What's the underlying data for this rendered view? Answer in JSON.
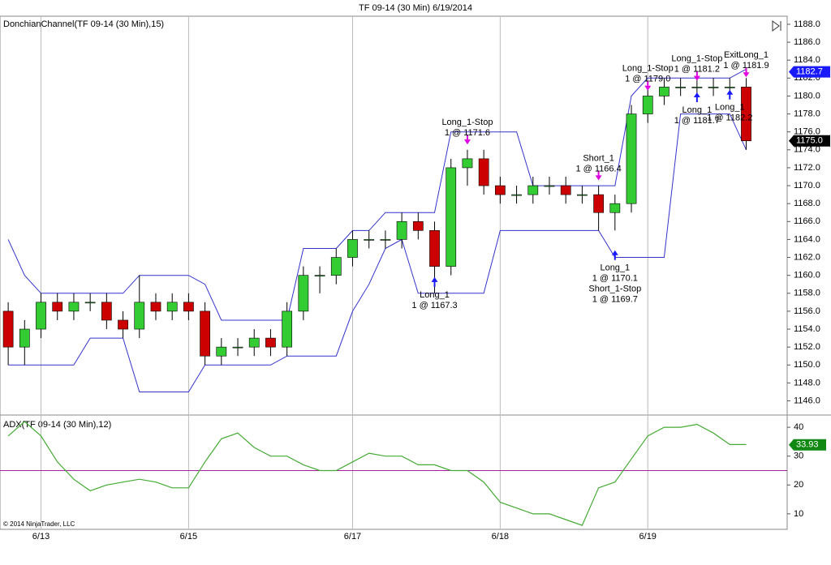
{
  "title": "TF 09-14 (30 Min)  6/19/2014",
  "copyright": "© 2014 NinjaTrader, LLC",
  "chart_data": [
    {
      "type": "candlestick",
      "title": "DonchianChannel(TF 09-14 (30 Min),15)",
      "categories": [
        null,
        null,
        "6/13",
        null,
        null,
        null,
        null,
        null,
        null,
        null,
        null,
        "6/15",
        null,
        null,
        null,
        null,
        null,
        null,
        null,
        null,
        null,
        "6/17",
        null,
        null,
        null,
        null,
        null,
        null,
        null,
        null,
        "6/18",
        null,
        null,
        null,
        null,
        null,
        null,
        null,
        null,
        "6/19",
        null,
        null,
        null,
        null,
        null,
        null,
        null,
        null
      ],
      "open": [
        1156,
        1152,
        1154,
        1157,
        1156,
        1157,
        1157,
        1155,
        1154,
        1157,
        1156,
        1157,
        1156,
        1151,
        1152,
        1152,
        1153,
        1152,
        1156,
        1160,
        1160,
        1162,
        1164,
        1164,
        1164,
        1166,
        1165,
        1161,
        1172,
        1173,
        1170,
        1169,
        1169,
        1170,
        1170,
        1169,
        1169,
        1167,
        1168,
        1178,
        1180,
        1181,
        1181,
        1181,
        1181,
        1181,
        null,
        null
      ],
      "high": [
        1157,
        1155,
        1158,
        1158,
        1158,
        1158,
        1158,
        1156,
        1160,
        1158,
        1158,
        1158,
        1157,
        1153,
        1153,
        1154,
        1154,
        1157,
        1161,
        1161,
        1163,
        1165,
        1165,
        1165,
        1167,
        1167,
        1166,
        1173,
        1174,
        1174,
        1171,
        1170,
        1171,
        1171,
        1171,
        1170,
        1170,
        1169,
        1179,
        1181,
        1182,
        1182,
        1182,
        1182,
        1182,
        1182,
        null,
        null
      ],
      "low": [
        1150,
        1150,
        1153,
        1155,
        1155,
        1156,
        1154,
        1153,
        1153,
        1155,
        1155,
        1155,
        1150,
        1150,
        1151,
        1151,
        1151,
        1151,
        1155,
        1158,
        1159,
        1161,
        1163,
        1163,
        1163,
        1164,
        1158,
        1160,
        1170,
        1169,
        1168,
        1168,
        1168,
        1169,
        1168,
        1168,
        1165,
        1165,
        1167,
        1177,
        1179,
        1180,
        1180,
        1180,
        1180,
        1174,
        null,
        null
      ],
      "close": [
        1152,
        1154,
        1157,
        1156,
        1157,
        1157,
        1155,
        1154,
        1157,
        1156,
        1157,
        1156,
        1151,
        1152,
        1152,
        1153,
        1152,
        1156,
        1160,
        1160,
        1162,
        1164,
        1164,
        1164,
        1166,
        1165,
        1161,
        1172,
        1173,
        1170,
        1169,
        1169,
        1170,
        1170,
        1169,
        1169,
        1167,
        1168,
        1178,
        1180,
        1181,
        1181,
        1181,
        1181,
        1181,
        1175,
        null,
        null
      ],
      "up_color": "#33cc33",
      "down_color": "#cc0000",
      "channel": [
        {
          "color": "#3333cc",
          "values": [
            1164,
            1160,
            1158,
            1158,
            1158,
            1158,
            1158,
            1158,
            1160,
            1160,
            1160,
            1160,
            1159,
            1155,
            1155,
            1155,
            1155,
            1155,
            1163,
            1163,
            1163,
            1165,
            1165,
            1167,
            1167,
            1167,
            1167,
            1176,
            1176,
            1176,
            1176,
            1176,
            1170,
            1170,
            1170,
            1170,
            1170,
            1170,
            1180,
            1182,
            1182,
            1182,
            1182,
            1182,
            1182,
            1183,
            null,
            null
          ]
        },
        {
          "color": "#3333cc",
          "values": [
            1150,
            1150,
            1150,
            1150,
            1150,
            1153,
            1153,
            1153,
            1147,
            1147,
            1147,
            1147,
            1150,
            1150,
            1150,
            1150,
            1150,
            1151,
            1151,
            1151,
            1151,
            1156,
            1159,
            1163,
            1164,
            1158,
            1158,
            1158,
            1158,
            1158,
            1165,
            1165,
            1165,
            1165,
            1165,
            1165,
            1165,
            1162,
            1162,
            1162,
            1162,
            1178,
            1178,
            1178,
            1178,
            1174,
            null,
            null
          ]
        }
      ],
      "ylim": [
        1144.6,
        1188.9
      ],
      "yticks": [
        {
          "value": 1146,
          "label": "1146.0"
        },
        {
          "value": 1148,
          "label": "1148.0"
        },
        {
          "value": 1150,
          "label": "1150.0"
        },
        {
          "value": 1152,
          "label": "1152.0"
        },
        {
          "value": 1154,
          "label": "1154.0"
        },
        {
          "value": 1156,
          "label": "1156.0"
        },
        {
          "value": 1158,
          "label": "1158.0"
        },
        {
          "value": 1160,
          "label": "1160.0"
        },
        {
          "value": 1162,
          "label": "1162.0"
        },
        {
          "value": 1164,
          "label": "1164.0"
        },
        {
          "value": 1166,
          "label": "1166.0"
        },
        {
          "value": 1168,
          "label": "1168.0"
        },
        {
          "value": 1170,
          "label": "1170.0"
        },
        {
          "value": 1172,
          "label": "1172.0"
        },
        {
          "value": 1174,
          "label": "1174.0"
        },
        {
          "value": 1176,
          "label": "1176.0"
        },
        {
          "value": 1178,
          "label": "1178.0"
        },
        {
          "value": 1180,
          "label": "1180.0"
        },
        {
          "value": 1182,
          "label": "1182.0"
        },
        {
          "value": 1184,
          "label": "1184.0"
        },
        {
          "value": 1186,
          "label": "1186.0"
        },
        {
          "value": 1188,
          "label": "1188.0"
        }
      ],
      "price_tags": [
        {
          "value": 1182.7,
          "label": "1182.7",
          "color": "#1a1aff"
        },
        {
          "value": 1175.0,
          "label": "1175.0",
          "color": "#000000"
        }
      ],
      "annotations": [
        {
          "label": [
            "Long_1",
            "1 @ 1167.3"
          ],
          "at": 26,
          "price": 1159.8,
          "side": "below"
        },
        {
          "label": [
            "Long_1-Stop",
            "1 @ 1171.6"
          ],
          "at": 28,
          "price": 1174.6,
          "side": "above"
        },
        {
          "label": [
            "Short_1",
            "1 @ 1166.4"
          ],
          "at": 36,
          "price": 1170.6,
          "side": "above"
        },
        {
          "label": [
            "Long_1",
            "1 @ 1170.1",
            "Short_1-Stop",
            "1 @ 1169.7"
          ],
          "at": 37,
          "price": 1162.8,
          "side": "below"
        },
        {
          "label": [
            "Long_1-Stop",
            "1 @ 1179.0"
          ],
          "at": 39,
          "price": 1180.6,
          "side": "above"
        },
        {
          "label": [
            "Long_1-Stop",
            "1 @ 1181.2"
          ],
          "at": 42,
          "price": 1181.7,
          "side": "above"
        },
        {
          "label": [
            "ExitLong_1",
            "1 @ 1181.9"
          ],
          "at": 45,
          "price": 1182.1,
          "side": "above"
        },
        {
          "label": [
            "Long_1",
            "1 @ 1181.7"
          ],
          "at": 42,
          "price": 1180.4,
          "side": "below"
        },
        {
          "label": [
            "Long_1",
            "1 @ 1182.2"
          ],
          "at": 44,
          "price": 1180.7,
          "side": "below"
        }
      ]
    },
    {
      "type": "line",
      "title": "ADX(TF 09-14 (30 Min),12)",
      "color": "#44aa33",
      "values": [
        37,
        42,
        37,
        28,
        22,
        18,
        20,
        21,
        22,
        21,
        19,
        19,
        28,
        36,
        38,
        33,
        30,
        30,
        27,
        25,
        25,
        28,
        31,
        30,
        30,
        27,
        27,
        25,
        25,
        21,
        14,
        12,
        10,
        10,
        8,
        6,
        19,
        21,
        29,
        37,
        40,
        40,
        41,
        38,
        34,
        34,
        null,
        null
      ],
      "level_lines": [
        25
      ],
      "level_color": "#a020a0",
      "ylim": [
        4.9,
        43.4
      ],
      "yticks": [
        10,
        20,
        30,
        40
      ],
      "last_tag": 33.93
    }
  ]
}
